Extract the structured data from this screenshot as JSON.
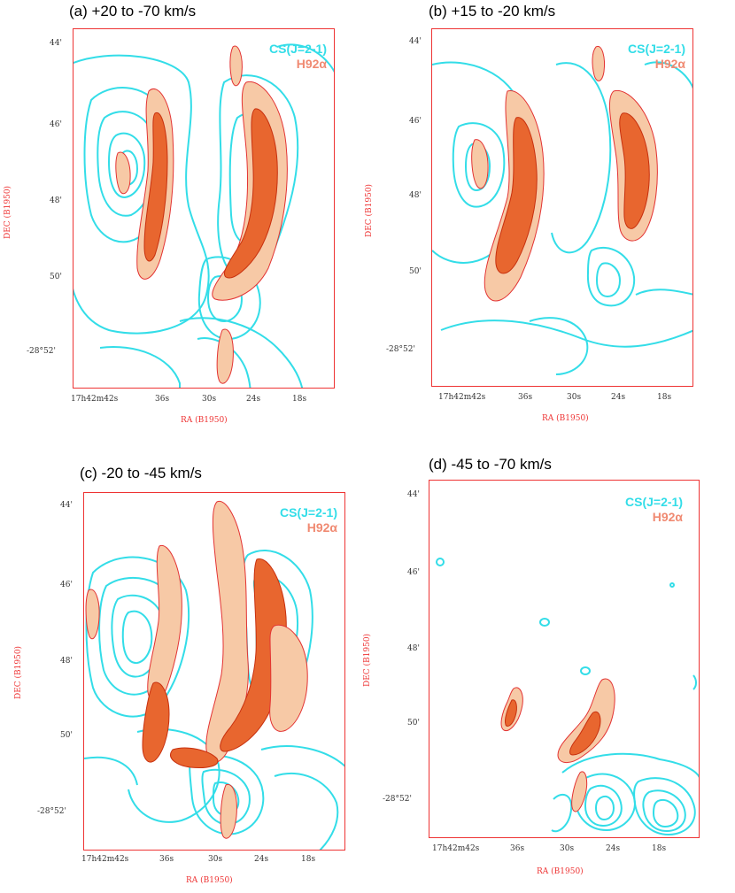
{
  "chart_data": [
    {
      "type": "contour",
      "title": "(a) +20 to -70 km/s",
      "xlabel": "RA (B1950)",
      "ylabel": "DEC (B1950)",
      "x_ticks": [
        "17h42m42s",
        "36s",
        "30s",
        "24s",
        "18s"
      ],
      "y_ticks": [
        "44'",
        "46'",
        "48'",
        "50'",
        "-28°52'"
      ],
      "legend": [
        "CS(J=2-1)",
        "H92α"
      ]
    },
    {
      "type": "contour",
      "title": "(b) +15 to -20 km/s",
      "xlabel": "RA (B1950)",
      "ylabel": "DEC (B1950)",
      "x_ticks": [
        "17h42m42s",
        "36s",
        "30s",
        "24s",
        "18s"
      ],
      "y_ticks": [
        "44'",
        "46'",
        "48'",
        "50'",
        "-28°52'"
      ],
      "legend": [
        "CS(J=2-1)",
        "H92α"
      ]
    },
    {
      "type": "contour",
      "title": "(c) -20 to -45 km/s",
      "xlabel": "RA (B1950)",
      "ylabel": "DEC (B1950)",
      "x_ticks": [
        "17h42m42s",
        "36s",
        "30s",
        "24s",
        "18s"
      ],
      "y_ticks": [
        "44'",
        "46'",
        "48'",
        "50'",
        "-28°52'"
      ],
      "legend": [
        "CS(J=2-1)",
        "H92α"
      ]
    },
    {
      "type": "contour",
      "title": "(d) -45 to -70 km/s",
      "xlabel": "RA (B1950)",
      "ylabel": "DEC (B1950)",
      "x_ticks": [
        "17h42m42s",
        "36s",
        "30s",
        "24s",
        "18s"
      ],
      "y_ticks": [
        "44'",
        "46'",
        "48'",
        "50'",
        "-28°52'"
      ],
      "legend": [
        "CS(J=2-1)",
        "H92α"
      ]
    }
  ],
  "colors": {
    "cs": "#33dde8",
    "h92": "#f08a72",
    "axis": "#e33333",
    "peak": "#d9360f",
    "fill": "#f7c9a6"
  }
}
